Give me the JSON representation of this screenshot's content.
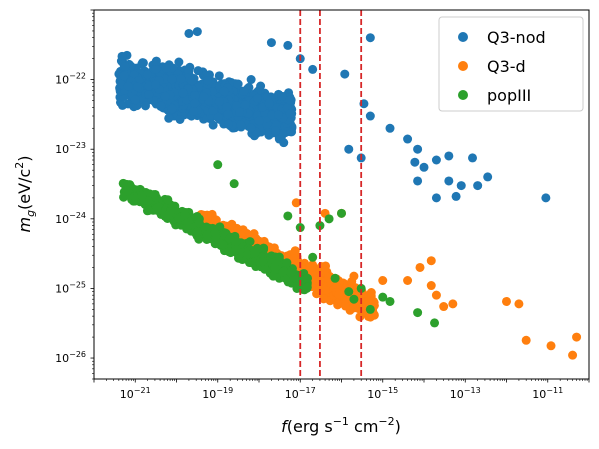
{
  "chart_data": {
    "type": "scatter",
    "title": "",
    "xlabel": {
      "base": "f",
      "units": "(erg s",
      "exp1": "−1",
      "mid": " cm",
      "exp2": "−2",
      "close": ")"
    },
    "ylabel": {
      "base": "m",
      "sub": "g",
      "units": "(eV/c",
      "exp": "2",
      "close": ")"
    },
    "x_scale": "log",
    "y_scale": "log",
    "xlim": [
      1e-22,
      1e-10
    ],
    "ylim": [
      5e-27,
      1e-21
    ],
    "x_tick_labels": [
      {
        "value": 1e-21,
        "base": "10",
        "exp": "−21"
      },
      {
        "value": 1e-19,
        "base": "10",
        "exp": "−19"
      },
      {
        "value": 1e-17,
        "base": "10",
        "exp": "−17"
      },
      {
        "value": 1e-15,
        "base": "10",
        "exp": "−15"
      },
      {
        "value": 1e-13,
        "base": "10",
        "exp": "−13"
      },
      {
        "value": 1e-11,
        "base": "10",
        "exp": "−11"
      }
    ],
    "y_tick_labels": [
      {
        "value": 1e-26,
        "base": "10",
        "exp": "−26"
      },
      {
        "value": 1e-25,
        "base": "10",
        "exp": "−25"
      },
      {
        "value": 1e-24,
        "base": "10",
        "exp": "−24"
      },
      {
        "value": 1e-23,
        "base": "10",
        "exp": "−23"
      },
      {
        "value": 1e-22,
        "base": "10",
        "exp": "−22"
      }
    ],
    "vlines": [
      {
        "x": 1e-17,
        "color": "#d62728",
        "style": "dashed"
      },
      {
        "x": 3e-17,
        "color": "#d62728",
        "style": "dashed"
      },
      {
        "x": 3e-16,
        "color": "#d62728",
        "style": "dashed"
      }
    ],
    "legend": {
      "placement": "top-right"
    },
    "series": [
      {
        "name": "Q3-nod",
        "color": "#1f77b4",
        "outliers": [
          [
            3.2e-20,
            4.9e-22
          ],
          [
            2e-20,
            4.6e-22
          ],
          [
            5e-16,
            4e-22
          ],
          [
            5e-18,
            3.1e-22
          ],
          [
            2e-18,
            3.4e-22
          ],
          [
            1e-17,
            2e-22
          ],
          [
            2e-17,
            1.4e-22
          ],
          [
            1.2e-16,
            1.2e-22
          ],
          [
            3.5e-16,
            4.5e-23
          ],
          [
            5e-16,
            3e-23
          ],
          [
            1.5e-15,
            2e-23
          ],
          [
            7e-15,
            1e-23
          ],
          [
            4e-15,
            1.4e-23
          ],
          [
            2e-14,
            7e-24
          ],
          [
            6e-15,
            6.5e-24
          ],
          [
            1e-14,
            5.5e-24
          ],
          [
            4e-14,
            3.5e-24
          ],
          [
            8e-14,
            3e-24
          ],
          [
            1.5e-13,
            7.5e-24
          ],
          [
            3.5e-13,
            4e-24
          ],
          [
            9e-12,
            2e-24
          ],
          [
            2e-14,
            2e-24
          ],
          [
            6e-14,
            2.1e-24
          ],
          [
            3e-16,
            7.5e-24
          ],
          [
            1.5e-16,
            1e-23
          ],
          [
            7e-15,
            3.5e-24
          ],
          [
            2e-13,
            3e-24
          ],
          [
            4e-14,
            8e-24
          ]
        ]
      },
      {
        "name": "Q3-d",
        "color": "#ff7f0e",
        "outliers": [
          [
            5e-14,
            6e-26
          ],
          [
            3e-14,
            5.5e-26
          ],
          [
            1e-12,
            6.5e-26
          ],
          [
            2e-12,
            6e-26
          ],
          [
            1.2e-11,
            1.5e-26
          ],
          [
            3e-12,
            1.8e-26
          ],
          [
            4e-11,
            1.1e-26
          ],
          [
            5e-11,
            2e-26
          ],
          [
            2e-14,
            8e-26
          ],
          [
            1.5e-14,
            1.1e-25
          ],
          [
            4e-15,
            1.3e-25
          ],
          [
            8e-15,
            2e-25
          ],
          [
            1.5e-14,
            2.5e-25
          ],
          [
            4e-17,
            1.2e-24
          ],
          [
            1e-16,
            1.2e-24
          ],
          [
            8e-18,
            1.7e-24
          ],
          [
            2e-16,
            1.5e-25
          ],
          [
            1e-15,
            1.3e-25
          ]
        ]
      },
      {
        "name": "popIII",
        "color": "#2ca02c",
        "outliers": [
          [
            1e-19,
            6e-24
          ],
          [
            2.5e-19,
            3.2e-24
          ],
          [
            5e-17,
            1e-24
          ],
          [
            1.5e-16,
            9e-26
          ],
          [
            3e-16,
            1e-25
          ],
          [
            2e-16,
            7e-26
          ],
          [
            5e-16,
            5e-26
          ],
          [
            1e-15,
            7.5e-26
          ],
          [
            1.5e-15,
            6.5e-26
          ],
          [
            7e-15,
            4.5e-26
          ],
          [
            1.8e-14,
            3.2e-26
          ],
          [
            1e-16,
            1.2e-24
          ],
          [
            5e-18,
            1.1e-24
          ],
          [
            3e-17,
            8e-25
          ],
          [
            1e-17,
            7.5e-25
          ],
          [
            2e-17,
            2.8e-25
          ],
          [
            7e-17,
            1.4e-25
          ],
          [
            1.5e-17,
            1.4e-25
          ]
        ]
      }
    ]
  }
}
